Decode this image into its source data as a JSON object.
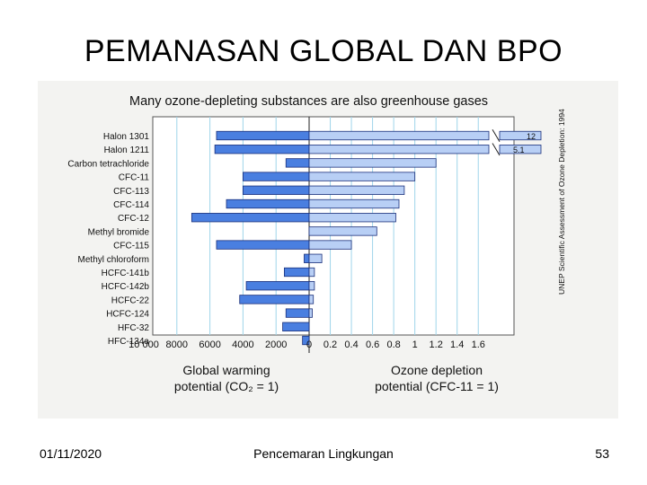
{
  "slide": {
    "title": "PEMANASAN GLOBAL DAN BPO",
    "footer_date": "01/11/2020",
    "footer_center": "Pencemaran Lingkungan",
    "footer_page": "53"
  },
  "chart_data": {
    "type": "bar",
    "title": "Many ozone-depleting substances are also greenhouse gases",
    "side_caption": "UNEP Scientific Assessment of Ozone Depletion: 1994",
    "categories": [
      "Halon 1301",
      "Halon 1211",
      "Carbon tetrachloride",
      "CFC-11",
      "CFC-113",
      "CFC-114",
      "CFC-12",
      "Methyl bromide",
      "CFC-115",
      "Methyl chloroform",
      "HCFC-141b",
      "HCFC-142b",
      "HCFC-22",
      "HCFC-124",
      "HFC-32",
      "HFC-134a"
    ],
    "series": [
      {
        "label_lines": [
          "Global warming",
          "potential (CO₂ = 1)"
        ],
        "direction": "left",
        "values": [
          5600,
          5700,
          1400,
          4000,
          4000,
          5000,
          7100,
          0,
          5600,
          300,
          1500,
          3800,
          4200,
          1400,
          1600,
          400
        ]
      },
      {
        "label_lines": [
          "Ozone depletion",
          "potential (CFC-11 = 1)"
        ],
        "direction": "right",
        "values": [
          12,
          5.1,
          1.2,
          1.0,
          0.9,
          0.85,
          0.82,
          0.64,
          0.4,
          0.12,
          0.05,
          0.05,
          0.04,
          0.03,
          0,
          0
        ],
        "broken_bar_labels": [
          "12",
          "5.1"
        ]
      }
    ],
    "x_ticks_left": [
      "10 000",
      "8000",
      "6000",
      "4000",
      "2000",
      "0"
    ],
    "x_ticks_right": [
      "0.2",
      "0.4",
      "0.6",
      "0.8",
      "1",
      "1.2",
      "1.4",
      "1.6"
    ],
    "xlim_left": [
      0,
      10000
    ],
    "xlim_right": [
      0,
      1.7
    ],
    "grid": true,
    "colors": {
      "left_bar": "#4a7fe0",
      "right_bar": "#b8cff5",
      "bar_stroke": "#1a2f7a",
      "grid_line": "#9fd5ea",
      "panel_bg": "#f3f3f1",
      "plot_bg": "#ffffff"
    }
  }
}
